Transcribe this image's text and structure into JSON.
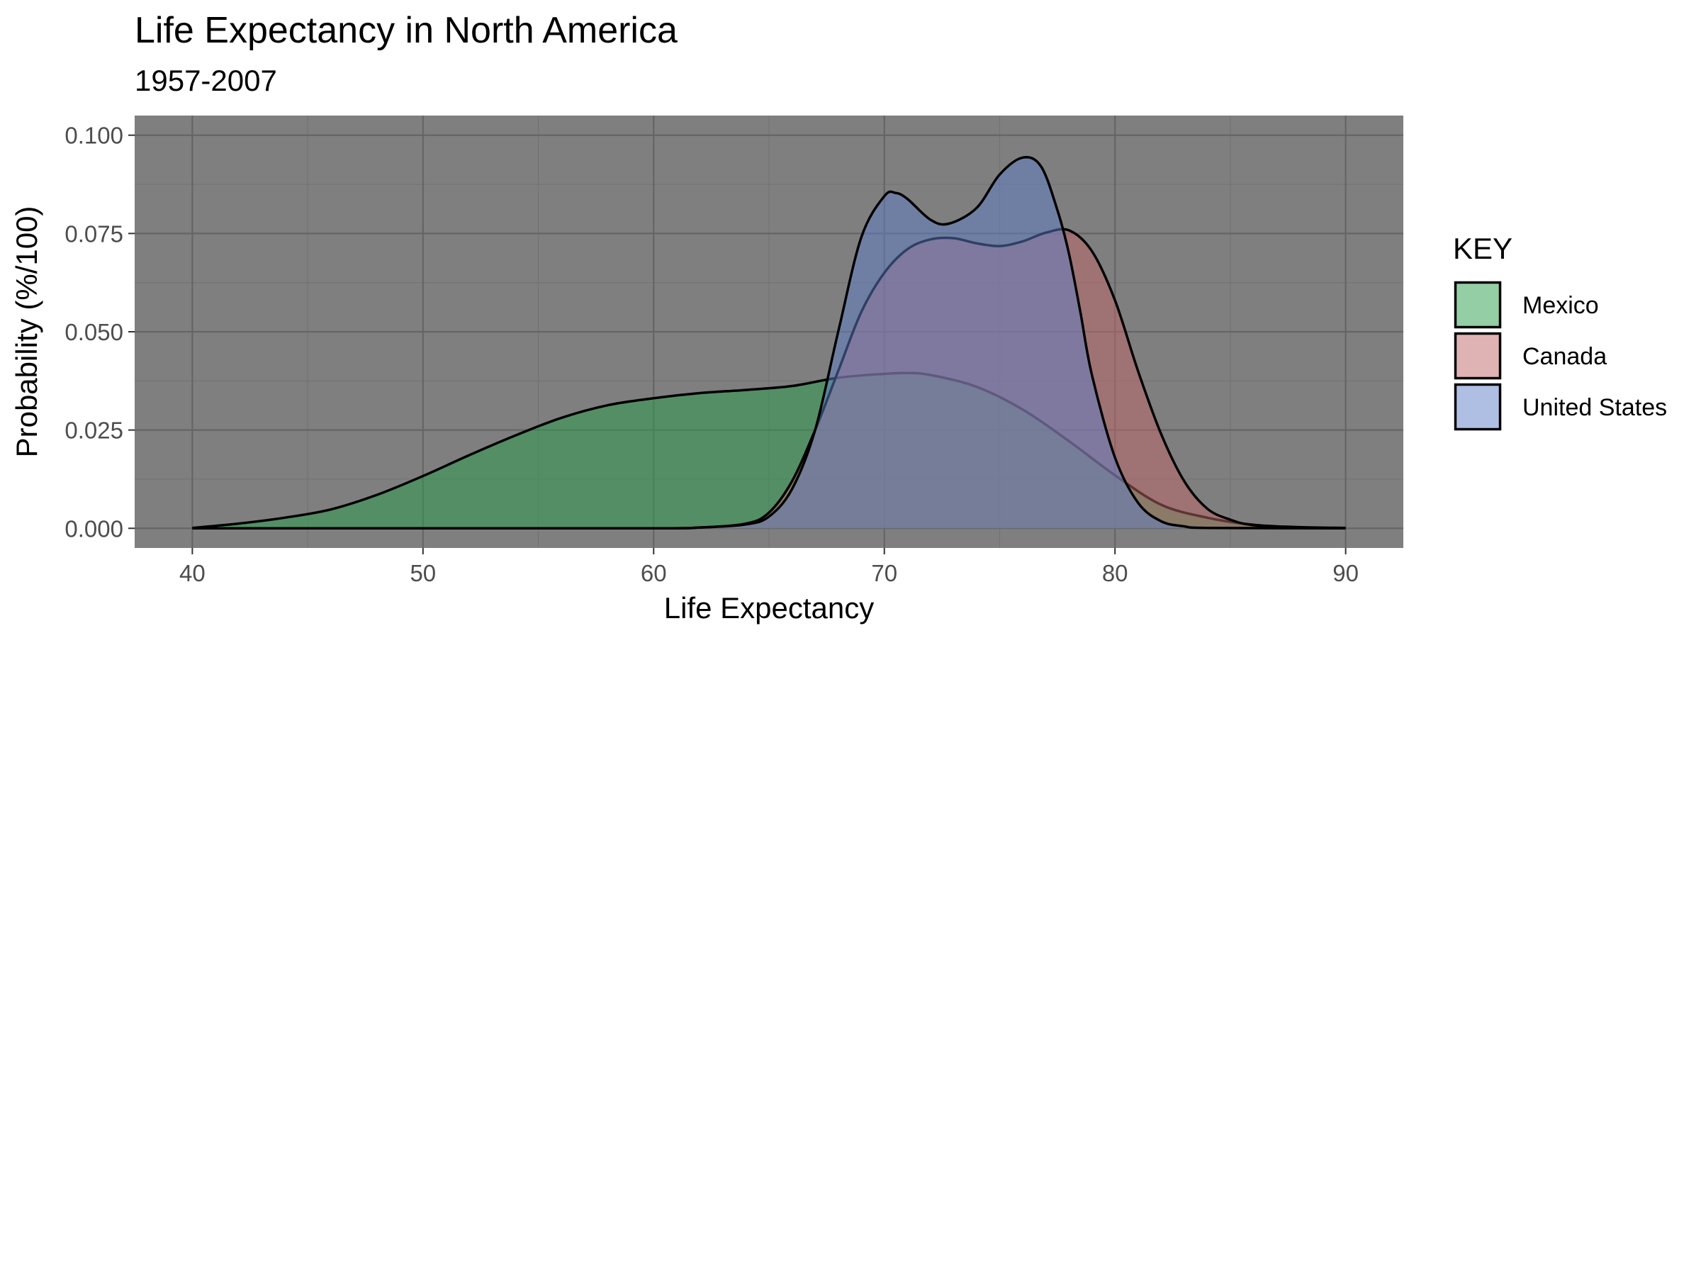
{
  "chart_data": {
    "type": "area",
    "subtype": "density",
    "title": "Life Expectancy in North America",
    "subtitle": "1957-2007",
    "xlabel": "Life Expectancy",
    "ylabel": "Probability (%/100)",
    "xlim": [
      37.5,
      92.5
    ],
    "ylim": [
      -0.005,
      0.105
    ],
    "x_ticks": [
      40,
      50,
      60,
      70,
      80,
      90
    ],
    "x_tick_labels": [
      "40",
      "50",
      "60",
      "70",
      "80",
      "90"
    ],
    "y_ticks": [
      0,
      0.025,
      0.05,
      0.075,
      0.1
    ],
    "y_tick_labels": [
      "0.000",
      "0.025",
      "0.050",
      "0.075",
      "0.100"
    ],
    "grid": true,
    "panel_background": "#7f7f7f",
    "legend": {
      "title": "KEY",
      "position": "right"
    },
    "series": [
      {
        "name": "Mexico",
        "color": "#2a9d4c",
        "points": [
          [
            40,
            0.0001
          ],
          [
            42,
            0.0012
          ],
          [
            44,
            0.0027
          ],
          [
            46,
            0.0048
          ],
          [
            48,
            0.0085
          ],
          [
            50,
            0.0133
          ],
          [
            52,
            0.0186
          ],
          [
            54,
            0.0236
          ],
          [
            56,
            0.0281
          ],
          [
            58,
            0.0313
          ],
          [
            60,
            0.0331
          ],
          [
            62,
            0.0344
          ],
          [
            64,
            0.0352
          ],
          [
            66,
            0.0362
          ],
          [
            68,
            0.0383
          ],
          [
            70,
            0.0393
          ],
          [
            71,
            0.0395
          ],
          [
            72,
            0.039
          ],
          [
            74,
            0.036
          ],
          [
            76,
            0.0302
          ],
          [
            78,
            0.0222
          ],
          [
            80,
            0.0135
          ],
          [
            82,
            0.006
          ],
          [
            84,
            0.0027
          ],
          [
            86,
            0.0009
          ],
          [
            88,
            0.0003
          ],
          [
            90,
            0.0001
          ]
        ]
      },
      {
        "name": "Canada",
        "color": "#c0666a",
        "points": [
          [
            40,
            0
          ],
          [
            60,
            0
          ],
          [
            62,
            0.0002
          ],
          [
            64,
            0.0012
          ],
          [
            65,
            0.004
          ],
          [
            66,
            0.012
          ],
          [
            67,
            0.025
          ],
          [
            68,
            0.04
          ],
          [
            69,
            0.055
          ],
          [
            70,
            0.065
          ],
          [
            71,
            0.071
          ],
          [
            72,
            0.0735
          ],
          [
            73,
            0.0738
          ],
          [
            74,
            0.0725
          ],
          [
            75,
            0.0718
          ],
          [
            76,
            0.073
          ],
          [
            77,
            0.0752
          ],
          [
            78,
            0.0758
          ],
          [
            79,
            0.0705
          ],
          [
            80,
            0.058
          ],
          [
            81,
            0.04
          ],
          [
            82,
            0.024
          ],
          [
            83,
            0.012
          ],
          [
            84,
            0.005
          ],
          [
            85,
            0.0022
          ],
          [
            86,
            0.0008
          ],
          [
            88,
            0.0002
          ],
          [
            90,
            0
          ]
        ]
      },
      {
        "name": "United States",
        "color": "#5f7fc9",
        "points": [
          [
            40,
            0
          ],
          [
            60,
            0
          ],
          [
            62,
            0.0002
          ],
          [
            64,
            0.001
          ],
          [
            65,
            0.003
          ],
          [
            66,
            0.01
          ],
          [
            67,
            0.025
          ],
          [
            68,
            0.05
          ],
          [
            69,
            0.074
          ],
          [
            70,
            0.0845
          ],
          [
            70.5,
            0.0853
          ],
          [
            71,
            0.0838
          ],
          [
            72,
            0.0785
          ],
          [
            72.8,
            0.0775
          ],
          [
            74,
            0.0815
          ],
          [
            75,
            0.09
          ],
          [
            76,
            0.0943
          ],
          [
            76.8,
            0.092
          ],
          [
            77.5,
            0.081
          ],
          [
            78,
            0.07
          ],
          [
            78.5,
            0.055
          ],
          [
            79,
            0.039
          ],
          [
            80,
            0.018
          ],
          [
            81,
            0.0065
          ],
          [
            82,
            0.0018
          ],
          [
            83,
            0.0005
          ],
          [
            84,
            0.0001
          ],
          [
            90,
            0
          ]
        ]
      }
    ]
  }
}
